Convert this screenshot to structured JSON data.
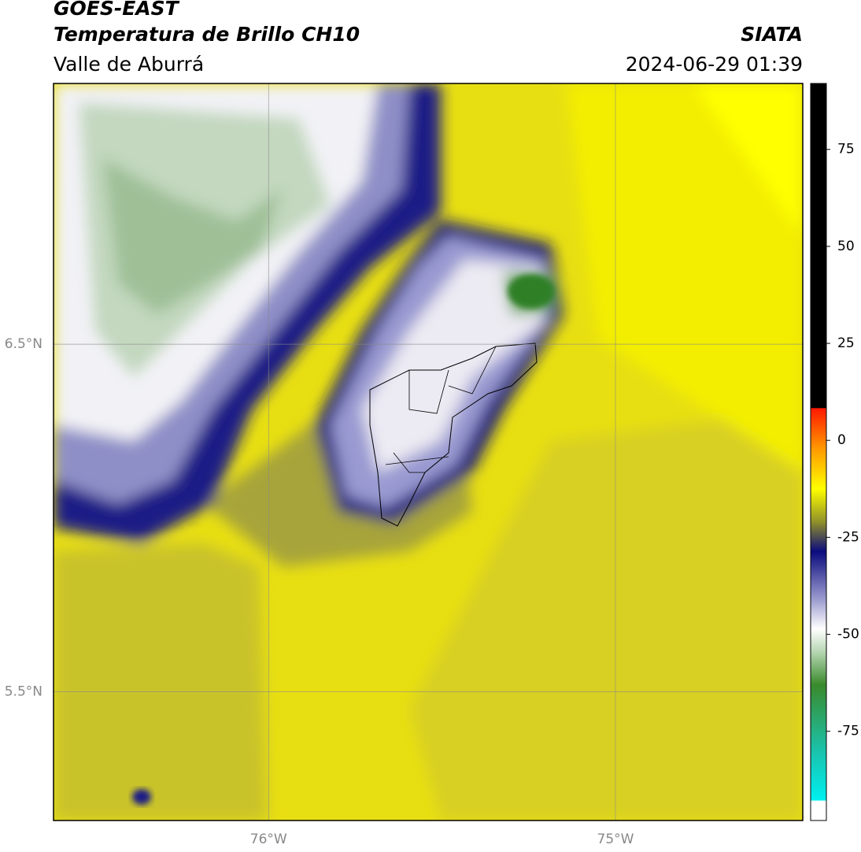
{
  "map": {
    "title": "GOES-EAST",
    "subtitle": "Temperatura de Brillo CH10",
    "region": "Valle de Aburrá",
    "source": "SIATA",
    "datetime": "2024-06-29 01:39",
    "xlim": [
      -76.62,
      -74.46
    ],
    "ylim": [
      5.13,
      7.25
    ],
    "xticks": [
      {
        "value": -76,
        "label": "76°W"
      },
      {
        "value": -75,
        "label": "75°W"
      }
    ],
    "yticks": [
      {
        "value": 6.5,
        "label": "6.5°N"
      },
      {
        "value": 5.5,
        "label": "5.5°N"
      }
    ],
    "grid": true,
    "colorbar": {
      "lim": [
        -98,
        92
      ],
      "ticks": [
        75,
        50,
        25,
        0,
        -25,
        -50,
        -75
      ]
    }
  }
}
